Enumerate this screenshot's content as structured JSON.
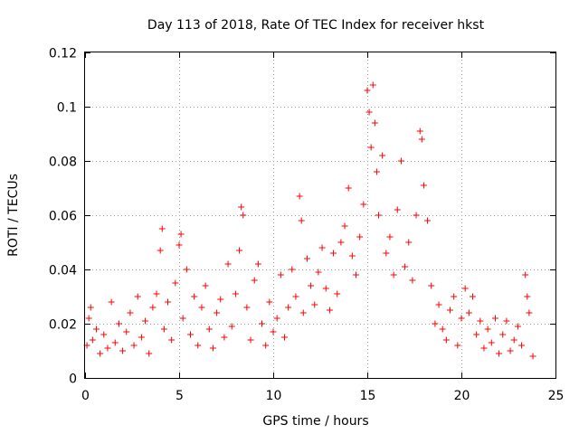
{
  "chart_data": {
    "type": "scatter",
    "title": "Day 113 of 2018, Rate Of TEC Index for receiver hkst",
    "xlabel": "GPS time / hours",
    "ylabel": "ROTI / TECUs",
    "xlim": [
      0,
      25
    ],
    "ylim": [
      0,
      0.12
    ],
    "x_ticks": [
      0,
      5,
      10,
      15,
      20,
      25
    ],
    "x_tick_labels": [
      "0",
      "5",
      "10",
      "15",
      "20",
      "25"
    ],
    "y_ticks": [
      0,
      0.02,
      0.04,
      0.06,
      0.08,
      0.1,
      0.12
    ],
    "y_tick_labels": [
      "0",
      "0.02",
      "0.04",
      "0.06",
      "0.08",
      "0.1",
      "0.12"
    ],
    "grid": true,
    "marker": "plus",
    "series": [
      {
        "name": "ROTI",
        "color": "#ff0000",
        "points": [
          [
            0.1,
            0.012
          ],
          [
            0.2,
            0.022
          ],
          [
            0.3,
            0.026
          ],
          [
            0.4,
            0.014
          ],
          [
            0.6,
            0.018
          ],
          [
            0.8,
            0.009
          ],
          [
            1.0,
            0.016
          ],
          [
            1.2,
            0.011
          ],
          [
            1.4,
            0.028
          ],
          [
            1.6,
            0.013
          ],
          [
            1.8,
            0.02
          ],
          [
            2.0,
            0.01
          ],
          [
            2.2,
            0.017
          ],
          [
            2.4,
            0.024
          ],
          [
            2.6,
            0.012
          ],
          [
            2.8,
            0.03
          ],
          [
            3.0,
            0.015
          ],
          [
            3.2,
            0.021
          ],
          [
            3.4,
            0.009
          ],
          [
            3.6,
            0.026
          ],
          [
            3.8,
            0.031
          ],
          [
            4.0,
            0.047
          ],
          [
            4.1,
            0.055
          ],
          [
            4.2,
            0.018
          ],
          [
            4.4,
            0.028
          ],
          [
            4.6,
            0.014
          ],
          [
            4.8,
            0.035
          ],
          [
            5.0,
            0.049
          ],
          [
            5.1,
            0.053
          ],
          [
            5.2,
            0.022
          ],
          [
            5.4,
            0.04
          ],
          [
            5.6,
            0.016
          ],
          [
            5.8,
            0.03
          ],
          [
            6.0,
            0.012
          ],
          [
            6.2,
            0.026
          ],
          [
            6.4,
            0.034
          ],
          [
            6.6,
            0.018
          ],
          [
            6.8,
            0.011
          ],
          [
            7.0,
            0.024
          ],
          [
            7.2,
            0.029
          ],
          [
            7.4,
            0.015
          ],
          [
            7.6,
            0.042
          ],
          [
            7.8,
            0.019
          ],
          [
            8.0,
            0.031
          ],
          [
            8.2,
            0.047
          ],
          [
            8.3,
            0.063
          ],
          [
            8.4,
            0.06
          ],
          [
            8.6,
            0.026
          ],
          [
            8.8,
            0.014
          ],
          [
            9.0,
            0.036
          ],
          [
            9.2,
            0.042
          ],
          [
            9.4,
            0.02
          ],
          [
            9.6,
            0.012
          ],
          [
            9.8,
            0.028
          ],
          [
            10.0,
            0.017
          ],
          [
            10.2,
            0.022
          ],
          [
            10.4,
            0.038
          ],
          [
            10.6,
            0.015
          ],
          [
            10.8,
            0.026
          ],
          [
            11.0,
            0.04
          ],
          [
            11.2,
            0.03
          ],
          [
            11.4,
            0.067
          ],
          [
            11.5,
            0.058
          ],
          [
            11.6,
            0.024
          ],
          [
            11.8,
            0.044
          ],
          [
            12.0,
            0.034
          ],
          [
            12.2,
            0.027
          ],
          [
            12.4,
            0.039
          ],
          [
            12.6,
            0.048
          ],
          [
            12.8,
            0.033
          ],
          [
            13.0,
            0.025
          ],
          [
            13.2,
            0.046
          ],
          [
            13.4,
            0.031
          ],
          [
            13.6,
            0.05
          ],
          [
            13.8,
            0.056
          ],
          [
            14.0,
            0.07
          ],
          [
            14.2,
            0.045
          ],
          [
            14.4,
            0.038
          ],
          [
            14.6,
            0.052
          ],
          [
            14.8,
            0.064
          ],
          [
            15.0,
            0.106
          ],
          [
            15.1,
            0.098
          ],
          [
            15.2,
            0.085
          ],
          [
            15.3,
            0.108
          ],
          [
            15.4,
            0.094
          ],
          [
            15.5,
            0.076
          ],
          [
            15.6,
            0.06
          ],
          [
            15.8,
            0.082
          ],
          [
            16.0,
            0.046
          ],
          [
            16.2,
            0.052
          ],
          [
            16.4,
            0.038
          ],
          [
            16.6,
            0.062
          ],
          [
            16.8,
            0.08
          ],
          [
            17.0,
            0.041
          ],
          [
            17.2,
            0.05
          ],
          [
            17.4,
            0.036
          ],
          [
            17.6,
            0.06
          ],
          [
            17.8,
            0.091
          ],
          [
            17.9,
            0.088
          ],
          [
            18.0,
            0.071
          ],
          [
            18.2,
            0.058
          ],
          [
            18.4,
            0.034
          ],
          [
            18.6,
            0.02
          ],
          [
            18.8,
            0.027
          ],
          [
            19.0,
            0.018
          ],
          [
            19.2,
            0.014
          ],
          [
            19.4,
            0.025
          ],
          [
            19.6,
            0.03
          ],
          [
            19.8,
            0.012
          ],
          [
            20.0,
            0.022
          ],
          [
            20.2,
            0.033
          ],
          [
            20.4,
            0.024
          ],
          [
            20.6,
            0.03
          ],
          [
            20.8,
            0.016
          ],
          [
            21.0,
            0.021
          ],
          [
            21.2,
            0.011
          ],
          [
            21.4,
            0.018
          ],
          [
            21.6,
            0.013
          ],
          [
            21.8,
            0.022
          ],
          [
            22.0,
            0.009
          ],
          [
            22.2,
            0.016
          ],
          [
            22.4,
            0.021
          ],
          [
            22.6,
            0.01
          ],
          [
            22.8,
            0.014
          ],
          [
            23.0,
            0.019
          ],
          [
            23.2,
            0.012
          ],
          [
            23.4,
            0.038
          ],
          [
            23.5,
            0.03
          ],
          [
            23.6,
            0.024
          ],
          [
            23.8,
            0.008
          ]
        ]
      }
    ]
  }
}
